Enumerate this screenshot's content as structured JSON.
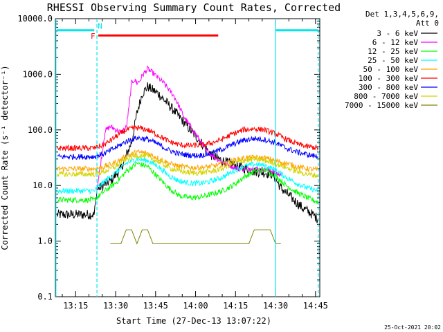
{
  "chart_data": {
    "type": "line",
    "title": "RHESSI Observing Summary Count Rates, Corrected",
    "xlabel": "Start Time (27-Dec-13 13:07:22)",
    "ylabel": "Corrected Count Rate (s⁻¹ detector⁻¹)",
    "x_tick_labels": [
      "13:15",
      "13:30",
      "13:45",
      "14:00",
      "14:15",
      "14:30",
      "14:45"
    ],
    "x_tick_minutes": [
      795,
      810,
      825,
      840,
      855,
      870,
      885
    ],
    "xlim_minutes": [
      787.4,
      886.6
    ],
    "y_scale": "log",
    "ylim": [
      0.1,
      10000
    ],
    "y_tick_labels": [
      "0.1",
      "1.0",
      "10.0",
      "100.0",
      "1000.0",
      "10000.0"
    ],
    "y_tick_values": [
      0.1,
      1,
      10,
      100,
      1000,
      10000
    ],
    "legend_header": [
      "Det 1,3,4,5,6,9,",
      "Att 0"
    ],
    "legend_position": "right",
    "series": [
      {
        "name": "3 - 6 keV",
        "color": "#000000",
        "x": [
          788,
          802,
          803,
          808,
          812,
          816,
          818,
          820,
          822,
          826,
          830,
          834,
          838,
          842,
          846,
          850,
          856,
          862,
          866,
          869,
          872,
          876,
          880,
          884,
          886
        ],
        "y": [
          3,
          3,
          8.5,
          12,
          20,
          60,
          200,
          450,
          600,
          450,
          280,
          170,
          100,
          60,
          35,
          28,
          22,
          18,
          17,
          16,
          9,
          6,
          4,
          3,
          2.5
        ]
      },
      {
        "name": "6 - 12 keV",
        "color": "#ff00ff",
        "x": [
          803,
          805,
          806,
          808,
          812,
          814,
          815,
          816,
          817,
          818,
          819,
          820,
          822,
          824,
          828,
          832,
          836,
          840,
          844,
          850,
          856,
          862,
          868,
          872
        ],
        "y": [
          8.5,
          40,
          95,
          115,
          90,
          110,
          250,
          700,
          800,
          700,
          750,
          950,
          1250,
          1050,
          700,
          400,
          160,
          85,
          42,
          26,
          20,
          20,
          19,
          15
        ]
      },
      {
        "name": "12 - 25 keV",
        "color": "#00ff00",
        "x": [
          788,
          802,
          806,
          810,
          814,
          818,
          822,
          826,
          830,
          834,
          838,
          842,
          846,
          850,
          854,
          858,
          862,
          866,
          870,
          874,
          878,
          882,
          886
        ],
        "y": [
          5.5,
          5.5,
          8,
          11,
          18,
          25,
          22,
          14,
          9,
          6.5,
          6,
          6.2,
          7,
          8,
          10,
          14,
          18,
          19,
          15,
          10,
          7.5,
          6,
          5
        ]
      },
      {
        "name": "25 - 50 keV",
        "color": "#00ffff",
        "x": [
          788,
          802,
          806,
          810,
          814,
          818,
          822,
          826,
          830,
          834,
          838,
          842,
          846,
          850,
          854,
          858,
          862,
          866,
          870,
          874,
          878,
          882,
          886
        ],
        "y": [
          8,
          8,
          12,
          17,
          25,
          30,
          28,
          22,
          15,
          12,
          11,
          11,
          12,
          14,
          18,
          22,
          24,
          23,
          19,
          14,
          11,
          9,
          8
        ]
      },
      {
        "name": "50 - 100 keV",
        "color": "#ffa500",
        "x": [
          788,
          802,
          806,
          810,
          814,
          818,
          822,
          826,
          830,
          834,
          838,
          842,
          846,
          850,
          854,
          858,
          862,
          866,
          870,
          874,
          878,
          882,
          886
        ],
        "y": [
          20,
          20,
          22,
          26,
          33,
          40,
          38,
          31,
          25,
          22,
          21,
          21,
          22,
          24,
          28,
          31,
          32,
          31,
          28,
          25,
          22,
          20,
          19
        ]
      },
      {
        "name": "100 - 300 keV",
        "color": "#ff0000",
        "x": [
          788,
          802,
          806,
          810,
          814,
          818,
          822,
          826,
          830,
          834,
          838,
          842,
          846,
          850,
          854,
          858,
          862,
          866,
          870,
          874,
          878,
          882,
          886
        ],
        "y": [
          47,
          47,
          55,
          75,
          100,
          110,
          100,
          80,
          62,
          54,
          52,
          53,
          58,
          68,
          85,
          100,
          105,
          100,
          85,
          68,
          56,
          50,
          47
        ]
      },
      {
        "name": "300 - 800 keV",
        "color": "#0000ff",
        "x": [
          788,
          802,
          806,
          810,
          814,
          818,
          822,
          826,
          830,
          834,
          838,
          842,
          846,
          850,
          854,
          858,
          862,
          866,
          870,
          874,
          878,
          882,
          886
        ],
        "y": [
          33,
          33,
          38,
          48,
          62,
          72,
          68,
          55,
          43,
          37,
          35,
          35,
          38,
          45,
          55,
          65,
          70,
          67,
          58,
          47,
          40,
          36,
          33
        ]
      },
      {
        "name": "800 - 7000 keV",
        "color": "#d4d400",
        "x": [
          788,
          802,
          806,
          810,
          814,
          818,
          822,
          826,
          830,
          834,
          838,
          842,
          846,
          850,
          854,
          858,
          862,
          866,
          870,
          874,
          878,
          882,
          886
        ],
        "y": [
          16,
          16,
          18,
          22,
          30,
          35,
          33,
          27,
          21,
          18,
          17,
          17,
          18,
          20,
          25,
          28,
          30,
          28,
          25,
          21,
          18,
          16,
          15
        ]
      },
      {
        "name": "7000 - 15000 keV",
        "color": "#808000",
        "x": [
          808,
          810,
          812,
          814,
          816,
          818,
          820,
          822,
          824,
          826,
          842,
          846,
          848,
          852,
          856,
          860,
          862,
          864,
          866,
          868,
          870,
          872
        ],
        "y": [
          0.9,
          0.9,
          0.9,
          1.6,
          1.6,
          0.9,
          1.6,
          1.6,
          0.9,
          0.9,
          0.9,
          0.9,
          0.9,
          0.9,
          0.9,
          0.9,
          1.6,
          1.6,
          1.6,
          1.6,
          0.9,
          0.9
        ]
      }
    ],
    "flag_bars": [
      {
        "letter": "F",
        "color": "#ff0000",
        "x_start": 803.5,
        "x_end": 848.5,
        "level": 5000
      },
      {
        "letter": "N",
        "color": "#00e5ee",
        "x_start": 788,
        "x_end": 802,
        "level": 6200
      },
      {
        "letter": "",
        "color": "#00e5ee",
        "x_start": 870,
        "x_end": 886,
        "level": 6200
      }
    ],
    "vertical_markers": [
      {
        "x": 787.6,
        "style": "solid",
        "color": "#00e5ee"
      },
      {
        "x": 803,
        "style": "dashed",
        "color": "#00e5ee"
      },
      {
        "x": 870,
        "style": "solid",
        "color": "#00e5ee"
      },
      {
        "x": 886,
        "style": "dashed",
        "color": "#00e5ee"
      }
    ],
    "timestamp": "25-Oct-2021 20:02"
  }
}
